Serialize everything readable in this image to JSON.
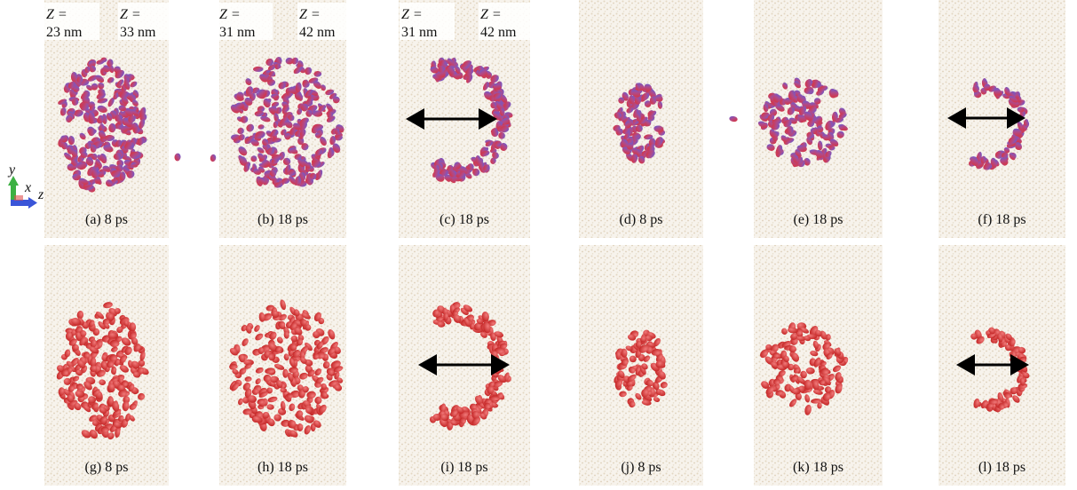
{
  "z_labels": [
    {
      "symbol": "Z =",
      "value": "23 nm"
    },
    {
      "symbol": "Z =",
      "value": "33 nm"
    },
    {
      "symbol": "Z =",
      "value": "31 nm"
    },
    {
      "symbol": "Z =",
      "value": "42 nm"
    },
    {
      "symbol": "Z =",
      "value": "31 nm"
    },
    {
      "symbol": "Z =",
      "value": "42 nm"
    }
  ],
  "panels": [
    {
      "caption": "(a) 8 ps"
    },
    {
      "caption": "(b) 18 ps"
    },
    {
      "caption": "(c) 18 ps"
    },
    {
      "caption": "(d) 8 ps"
    },
    {
      "caption": "(e) 18 ps"
    },
    {
      "caption": "(f) 18 ps"
    },
    {
      "caption": "(g) 8 ps"
    },
    {
      "caption": "(h) 18 ps"
    },
    {
      "caption": "(i) 18 ps"
    },
    {
      "caption": "(j) 8 ps"
    },
    {
      "caption": "(k) 18 ps"
    },
    {
      "caption": "(l) 18 ps"
    }
  ],
  "axes_triad": {
    "y": "y",
    "x": "x",
    "z": "z"
  }
}
